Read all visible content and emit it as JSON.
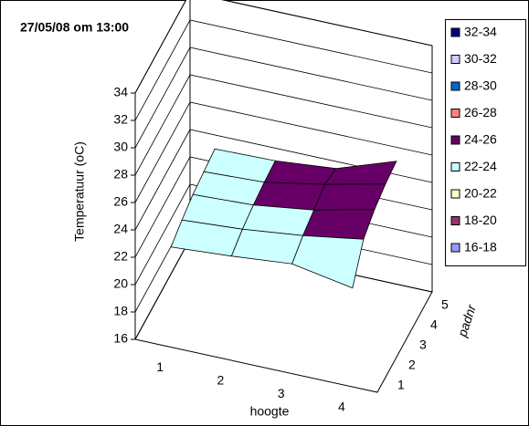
{
  "chart_data": {
    "type": "surface",
    "title": "27/05/08 om 13:00",
    "x_label": "hoogte",
    "y_label": "padnr",
    "z_label": "Temperatuur (oC)",
    "x_categories": [
      "1",
      "2",
      "3",
      "4"
    ],
    "y_categories": [
      "1",
      "2",
      "3",
      "4",
      "5"
    ],
    "values": [
      [
        22.5,
        22.8,
        23.2,
        22.4
      ],
      [
        23.0,
        23.3,
        23.8,
        24.5
      ],
      [
        23.4,
        23.6,
        24.2,
        25.2
      ],
      [
        23.6,
        23.8,
        24.6,
        25.6
      ],
      [
        23.8,
        23.9,
        24.3,
        25.8
      ]
    ],
    "zlim": [
      16,
      34
    ],
    "zticks": [
      16,
      18,
      20,
      22,
      24,
      26,
      28,
      30,
      32,
      34
    ],
    "grid": true,
    "legend_position": "right",
    "bands": [
      {
        "name": "32-34",
        "color": "#000080",
        "min": 32,
        "max": 34
      },
      {
        "name": "30-32",
        "color": "#ccccff",
        "min": 30,
        "max": 32
      },
      {
        "name": "28-30",
        "color": "#0066cc",
        "min": 28,
        "max": 30
      },
      {
        "name": "26-28",
        "color": "#ff8080",
        "min": 26,
        "max": 28
      },
      {
        "name": "24-26",
        "color": "#660066",
        "min": 24,
        "max": 26
      },
      {
        "name": "22-24",
        "color": "#ccffff",
        "min": 22,
        "max": 24
      },
      {
        "name": "20-22",
        "color": "#ffffcc",
        "min": 20,
        "max": 22
      },
      {
        "name": "18-20",
        "color": "#993366",
        "min": 18,
        "max": 20
      },
      {
        "name": "16-18",
        "color": "#9999ff",
        "min": 16,
        "max": 18
      }
    ]
  }
}
